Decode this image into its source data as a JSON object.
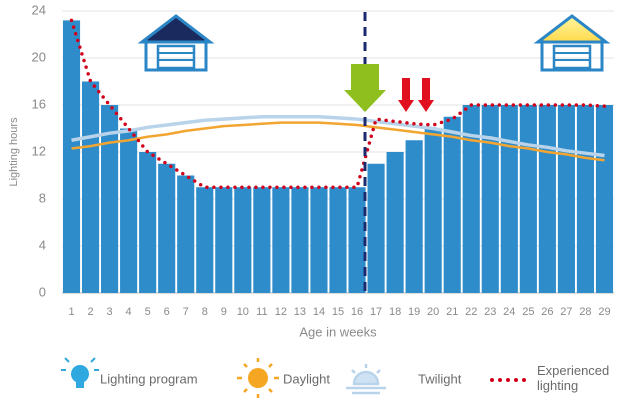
{
  "chart_data": {
    "type": "bar",
    "categories": [
      "1",
      "2",
      "3",
      "4",
      "5",
      "6",
      "7",
      "8",
      "9",
      "10",
      "11",
      "12",
      "13",
      "14",
      "15",
      "16",
      "17",
      "18",
      "19",
      "20",
      "21",
      "22",
      "23",
      "24",
      "25",
      "26",
      "27",
      "28",
      "29"
    ],
    "x_label": "Age in weeks",
    "y_label": "Lighting hours",
    "ylim": [
      0,
      24
    ],
    "yticks": [
      0,
      4,
      8,
      12,
      16,
      20,
      24
    ],
    "grid": true,
    "series": [
      {
        "name": "Lighting program",
        "kind": "bar",
        "color": "#2f8ccb",
        "values": [
          23.2,
          18,
          16,
          14,
          12,
          11,
          10,
          9,
          9,
          9,
          9,
          9,
          9,
          9,
          9,
          9,
          11,
          12,
          13,
          14,
          15,
          16,
          16,
          16,
          16,
          16,
          16,
          16,
          16
        ]
      },
      {
        "name": "Daylight",
        "kind": "line",
        "color": "#f2a530",
        "values": [
          12.3,
          12.5,
          12.8,
          13.0,
          13.3,
          13.5,
          13.8,
          14.0,
          14.2,
          14.3,
          14.4,
          14.5,
          14.5,
          14.5,
          14.4,
          14.3,
          14.1,
          13.9,
          13.7,
          13.5,
          13.3,
          13.0,
          12.8,
          12.5,
          12.3,
          12.0,
          11.8,
          11.5,
          11.3
        ]
      },
      {
        "name": "Twilight",
        "kind": "line",
        "color": "#b9d3ea",
        "values": [
          13.0,
          13.3,
          13.6,
          13.8,
          14.1,
          14.3,
          14.5,
          14.7,
          14.8,
          14.9,
          15.0,
          15.0,
          15.0,
          15.0,
          14.9,
          14.8,
          14.6,
          14.4,
          14.2,
          14.0,
          13.7,
          13.4,
          13.2,
          12.9,
          12.6,
          12.4,
          12.1,
          11.9,
          11.7
        ]
      },
      {
        "name": "Experienced lighting",
        "kind": "dotted",
        "color": "#d0021b",
        "values": [
          23.2,
          18,
          16,
          14,
          12,
          11,
          10,
          9,
          9,
          9,
          9,
          9,
          9,
          9,
          9,
          9,
          14.8,
          14.6,
          14.4,
          14.3,
          14.8,
          16,
          16,
          16,
          16,
          16,
          16,
          16,
          15.9
        ]
      }
    ]
  }
}
